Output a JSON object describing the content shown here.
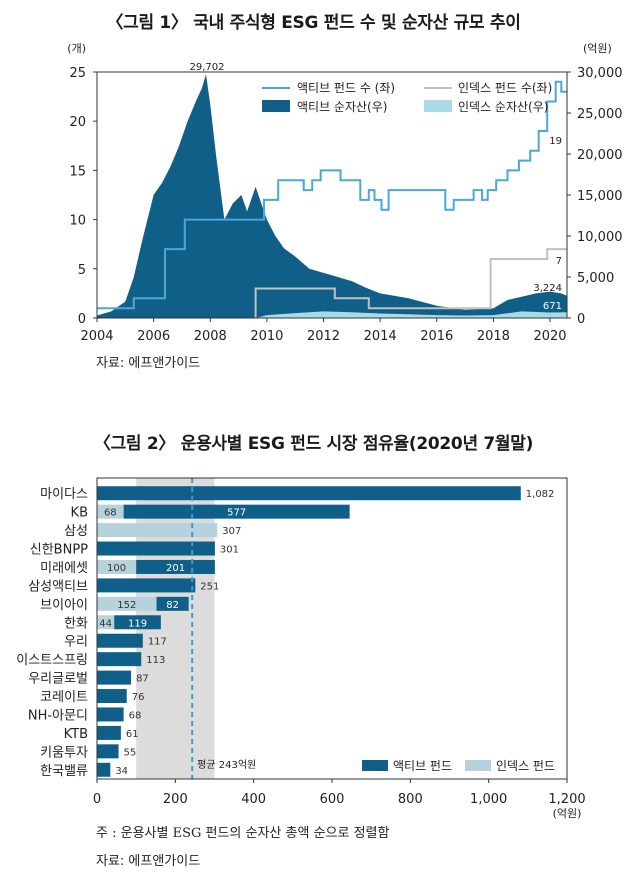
{
  "chart_data": [
    {
      "type": "line",
      "title": "〈그림 1〉 국내 주식형 ESG 펀드 수 및 순자산 규모 추이",
      "source": "자료: 에프앤가이드",
      "y_left_unit": "(개)",
      "y_right_unit": "(억원)",
      "ylim_left": [
        0,
        25
      ],
      "ylim_right": [
        0,
        30000
      ],
      "xlim": [
        2004,
        2020.6
      ],
      "x_ticks": [
        2004,
        2006,
        2008,
        2010,
        2012,
        2014,
        2016,
        2018,
        2020
      ],
      "y_left_ticks": [
        0,
        5,
        10,
        15,
        20,
        25
      ],
      "y_right_ticks": [
        "0",
        "5,000",
        "10,000",
        "15,000",
        "20,000",
        "25,000",
        "30,000"
      ],
      "legend": [
        "액티브 펀드 수 (좌)",
        "인덱스 펀드 수(좌)",
        "액티브 순자산(우)",
        "인덱스 순자산(우)"
      ],
      "colors": {
        "active_count": "#4aa8d8",
        "index_count": "#c0c0c0",
        "active_aum": "#0f5f88",
        "index_aum": "#a9dbe6"
      },
      "annotations": [
        "29,702",
        "19",
        "7",
        "3,224",
        "671"
      ],
      "series": [
        {
          "name": "액티브 펀드 수 (좌)",
          "axis": "left",
          "x": [
            2004.0,
            2005.3,
            2005.3,
            2006.4,
            2006.4,
            2007.1,
            2007.1,
            2009.9,
            2009.9,
            2010.4,
            2010.4,
            2011.3,
            2011.3,
            2011.6,
            2011.6,
            2011.9,
            2011.9,
            2012.6,
            2012.6,
            2013.3,
            2013.3,
            2013.6,
            2013.6,
            2013.8,
            2013.8,
            2014.05,
            2014.05,
            2014.3,
            2014.3,
            2016.3,
            2016.3,
            2016.6,
            2016.6,
            2017.3,
            2017.3,
            2017.6,
            2017.6,
            2017.8,
            2017.8,
            2018.1,
            2018.1,
            2018.5,
            2018.5,
            2018.9,
            2018.9,
            2019.3,
            2019.3,
            2019.6,
            2019.6,
            2019.9,
            2019.9,
            2020.2,
            2020.2,
            2020.4,
            2020.4,
            2020.6
          ],
          "y": [
            1,
            1,
            2,
            2,
            7,
            7,
            10,
            10,
            12,
            12,
            14,
            14,
            13,
            13,
            14,
            14,
            15,
            15,
            14,
            14,
            12,
            12,
            13,
            13,
            12,
            12,
            11,
            11,
            13,
            13,
            11,
            11,
            12,
            12,
            13,
            13,
            12,
            12,
            13,
            13,
            14,
            14,
            15,
            15,
            16,
            16,
            17,
            17,
            19,
            19,
            22,
            22,
            24,
            24,
            23,
            23
          ]
        },
        {
          "name": "인덱스 펀드 수(좌)",
          "axis": "left",
          "x": [
            2009.6,
            2009.6,
            2012.4,
            2012.4,
            2013.6,
            2013.6,
            2015.7,
            2015.7,
            2017.9,
            2017.9,
            2019.9,
            2019.9,
            2020.6
          ],
          "y": [
            0,
            3,
            3,
            2,
            2,
            1,
            1,
            1,
            1,
            6,
            6,
            7,
            7
          ]
        },
        {
          "name": "액티브 순자산(우)",
          "axis": "right",
          "x": [
            2004.0,
            2004.5,
            2005.0,
            2005.3,
            2005.6,
            2006.0,
            2006.3,
            2006.6,
            2006.9,
            2007.2,
            2007.5,
            2007.7,
            2007.85,
            2008.0,
            2008.2,
            2008.5,
            2008.8,
            2009.1,
            2009.3,
            2009.6,
            2009.8,
            2010.0,
            2010.3,
            2010.6,
            2011.0,
            2011.5,
            2012.0,
            2012.5,
            2013.0,
            2013.5,
            2014.0,
            2015.0,
            2016.0,
            2017.0,
            2018.0,
            2018.5,
            2019.0,
            2019.5,
            2020.0,
            2020.4,
            2020.6
          ],
          "y": [
            300,
            800,
            2000,
            5000,
            9500,
            15000,
            16500,
            18500,
            21000,
            24000,
            26500,
            28000,
            29702,
            26000,
            20000,
            12000,
            14000,
            15000,
            13000,
            16000,
            14000,
            12000,
            10000,
            8500,
            7500,
            6000,
            5500,
            5000,
            4500,
            3700,
            3000,
            2400,
            1500,
            1000,
            1200,
            2200,
            2600,
            3000,
            3224,
            3000,
            2700
          ]
        },
        {
          "name": "인덱스 순자산(우)",
          "axis": "right",
          "x": [
            2004.0,
            2009.6,
            2010.0,
            2011.0,
            2012.0,
            2013.0,
            2014.0,
            2015.0,
            2016.0,
            2017.0,
            2018.0,
            2019.0,
            2020.0,
            2020.6
          ],
          "y": [
            0,
            0,
            350,
            600,
            800,
            700,
            550,
            450,
            350,
            300,
            350,
            800,
            671,
            700
          ]
        }
      ]
    },
    {
      "type": "bar",
      "title": "〈그림 2〉 운용사별 ESG 펀드 시장 점유율(2020년 7월말)",
      "note": "주 : 운용사별 ESG 펀드의 순자산 총액 순으로 정렬함",
      "source": "자료: 에프앤가이드",
      "categories": [
        "마이다스",
        "KB",
        "삼성",
        "신한BNPP",
        "미래에셋",
        "삼성액티브",
        "브이아이",
        "한화",
        "우리",
        "이스트스프링",
        "우리글로벌",
        "코레이트",
        "NH-아문디",
        "KTB",
        "키움투자",
        "한국밸류"
      ],
      "series": [
        {
          "name": "인덱스 펀드",
          "values": [
            0,
            68,
            307,
            0,
            100,
            0,
            152,
            44,
            0,
            0,
            0,
            0,
            0,
            0,
            0,
            0
          ]
        },
        {
          "name": "액티브 펀드",
          "values": [
            1082,
            577,
            0,
            301,
            201,
            251,
            82,
            119,
            117,
            113,
            87,
            76,
            68,
            61,
            55,
            34
          ]
        }
      ],
      "value_labels": [
        "1,082",
        "577",
        "307",
        "301",
        "201",
        "251",
        "82",
        "119",
        "117",
        "113",
        "87",
        "76",
        "68",
        "61",
        "55",
        "34"
      ],
      "index_labels": [
        "",
        "68",
        "",
        "",
        "100",
        "",
        "152",
        "44",
        "",
        "",
        "",
        "",
        "",
        "",
        "",
        ""
      ],
      "xlim": [
        0,
        1200
      ],
      "x_ticks": [
        "0",
        "200",
        "400",
        "600",
        "800",
        "1,000",
        "1,200"
      ],
      "x_unit": "(억원)",
      "average": 243,
      "average_label": "평균 243억원",
      "shaded_band": [
        100,
        300
      ],
      "legend": [
        "액티브 펀드",
        "인덱스 펀드"
      ],
      "colors": {
        "active": "#0f5f88",
        "index": "#b6d3dd",
        "band": "#dcdcdc",
        "avg_line": "#3b9bd0"
      }
    }
  ]
}
